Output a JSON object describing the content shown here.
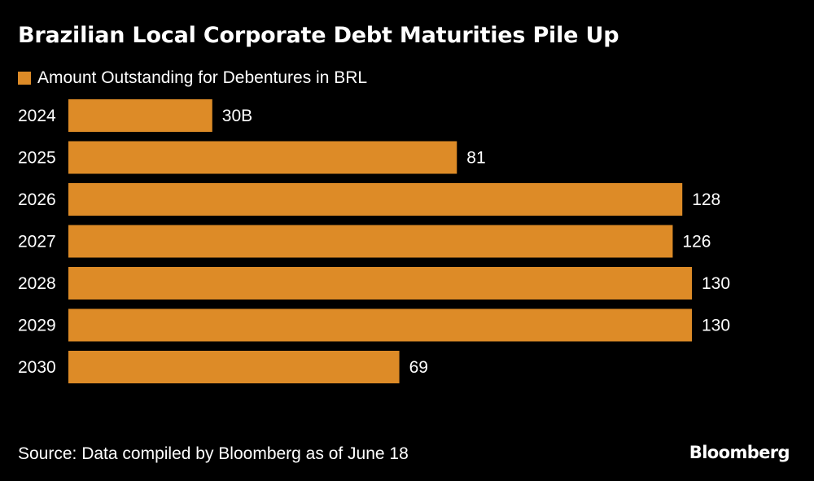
{
  "chart_data": {
    "type": "bar",
    "orientation": "horizontal",
    "title": "Brazilian Local Corporate Debt Maturities Pile Up",
    "series": [
      {
        "name": "Amount Outstanding for Debentures in BRL",
        "values": [
          30,
          81,
          128,
          126,
          130,
          130,
          69
        ]
      }
    ],
    "categories": [
      "2024",
      "2025",
      "2026",
      "2027",
      "2028",
      "2029",
      "2030"
    ],
    "value_labels": [
      "30B",
      "81",
      "128",
      "126",
      "130",
      "130",
      "69"
    ],
    "xlim": [
      0,
      130
    ],
    "grid": false,
    "legend_position": "top-left",
    "xlabel": "",
    "ylabel": ""
  },
  "source": "Source: Data compiled by Bloomberg as of June 18",
  "brand": "Bloomberg",
  "colors": {
    "bar": "#DD8B27",
    "background": "#000000",
    "text": "#FFFFFF"
  }
}
